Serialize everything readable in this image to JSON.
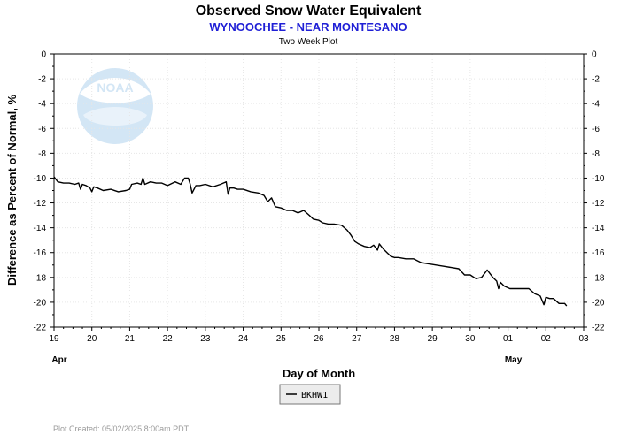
{
  "header": {
    "title": "Observed Snow Water Equivalent",
    "subtitle": "WYNOOCHEE - NEAR MONTESANO",
    "period": "Two Week Plot"
  },
  "watermark": {
    "text": "NOAA",
    "icon": "noaa-logo-icon"
  },
  "footer": {
    "created": "Plot Created:  05/02/2025 8:00am PDT"
  },
  "chart_data": {
    "type": "line",
    "title": "Observed Snow Water Equivalent",
    "xlabel": "Day of Month",
    "ylabel": "Difference as Percent of Normal, %",
    "x_ticks": [
      19,
      20,
      21,
      22,
      23,
      24,
      25,
      26,
      27,
      28,
      29,
      30,
      1,
      2,
      3
    ],
    "x_tick_labels": [
      "19",
      "20",
      "21",
      "22",
      "23",
      "24",
      "25",
      "26",
      "27",
      "28",
      "29",
      "30",
      "01",
      "02",
      "03"
    ],
    "month_labels": [
      {
        "label": "Apr",
        "x": 19
      },
      {
        "label": "May",
        "x": 31
      }
    ],
    "xlim": [
      19,
      33
    ],
    "ylim": [
      -22,
      0
    ],
    "y_ticks": [
      0,
      -2,
      -4,
      -6,
      -8,
      -10,
      -12,
      -14,
      -16,
      -18,
      -20,
      -22
    ],
    "y_tick_labels": [
      "0",
      "-2",
      "-4",
      "-6",
      "-8",
      "-10",
      "-12",
      "-14",
      "-16",
      "-18",
      "-20",
      "-22"
    ],
    "grid": true,
    "legend": "bottom-center",
    "series": [
      {
        "name": "BKHW1",
        "color": "#000000",
        "x": [
          19.0,
          19.1,
          19.25,
          19.4,
          19.55,
          19.65,
          19.7,
          19.75,
          19.85,
          19.95,
          20.0,
          20.05,
          20.15,
          20.3,
          20.5,
          20.7,
          20.9,
          21.0,
          21.05,
          21.2,
          21.3,
          21.35,
          21.4,
          21.55,
          21.7,
          21.85,
          22.0,
          22.2,
          22.35,
          22.45,
          22.55,
          22.6,
          22.65,
          22.75,
          22.85,
          23.0,
          23.2,
          23.4,
          23.55,
          23.6,
          23.65,
          23.75,
          23.85,
          24.0,
          24.2,
          24.4,
          24.55,
          24.65,
          24.75,
          24.85,
          25.0,
          25.15,
          25.3,
          25.45,
          25.6,
          25.75,
          25.85,
          26.0,
          26.1,
          26.25,
          26.4,
          26.6,
          26.75,
          26.85,
          26.95,
          27.05,
          27.2,
          27.35,
          27.45,
          27.55,
          27.6,
          27.7,
          27.8,
          27.9,
          28.0,
          28.1,
          28.3,
          28.5,
          28.7,
          28.9,
          29.1,
          29.3,
          29.5,
          29.7,
          29.85,
          30.0,
          30.15,
          30.3,
          30.45,
          30.6,
          30.7,
          30.75,
          30.8,
          30.9,
          31.05,
          31.2,
          31.4,
          31.55,
          31.7,
          31.85,
          31.95,
          32.0,
          32.1,
          32.2,
          32.35,
          32.5,
          32.55
        ],
        "y": [
          -9.9,
          -10.3,
          -10.4,
          -10.4,
          -10.5,
          -10.4,
          -10.9,
          -10.5,
          -10.6,
          -10.8,
          -11.1,
          -10.7,
          -10.8,
          -11.0,
          -10.9,
          -11.1,
          -11.0,
          -10.9,
          -10.5,
          -10.4,
          -10.5,
          -10.0,
          -10.5,
          -10.3,
          -10.4,
          -10.4,
          -10.6,
          -10.3,
          -10.5,
          -10.0,
          -10.0,
          -10.5,
          -11.2,
          -10.6,
          -10.6,
          -10.5,
          -10.7,
          -10.5,
          -10.3,
          -11.3,
          -10.8,
          -10.8,
          -10.9,
          -10.9,
          -11.1,
          -11.2,
          -11.4,
          -11.9,
          -11.6,
          -12.3,
          -12.4,
          -12.6,
          -12.6,
          -12.8,
          -12.6,
          -13.0,
          -13.3,
          -13.4,
          -13.6,
          -13.7,
          -13.7,
          -13.8,
          -14.2,
          -14.6,
          -15.1,
          -15.3,
          -15.5,
          -15.6,
          -15.4,
          -15.8,
          -15.3,
          -15.7,
          -16.0,
          -16.3,
          -16.4,
          -16.4,
          -16.5,
          -16.5,
          -16.8,
          -16.9,
          -17.0,
          -17.1,
          -17.2,
          -17.3,
          -17.8,
          -17.8,
          -18.1,
          -18.0,
          -17.4,
          -18.0,
          -18.3,
          -18.9,
          -18.4,
          -18.7,
          -18.9,
          -18.9,
          -18.9,
          -18.9,
          -19.3,
          -19.5,
          -20.2,
          -19.6,
          -19.7,
          -19.7,
          -20.1,
          -20.1,
          -20.3
        ]
      }
    ]
  }
}
